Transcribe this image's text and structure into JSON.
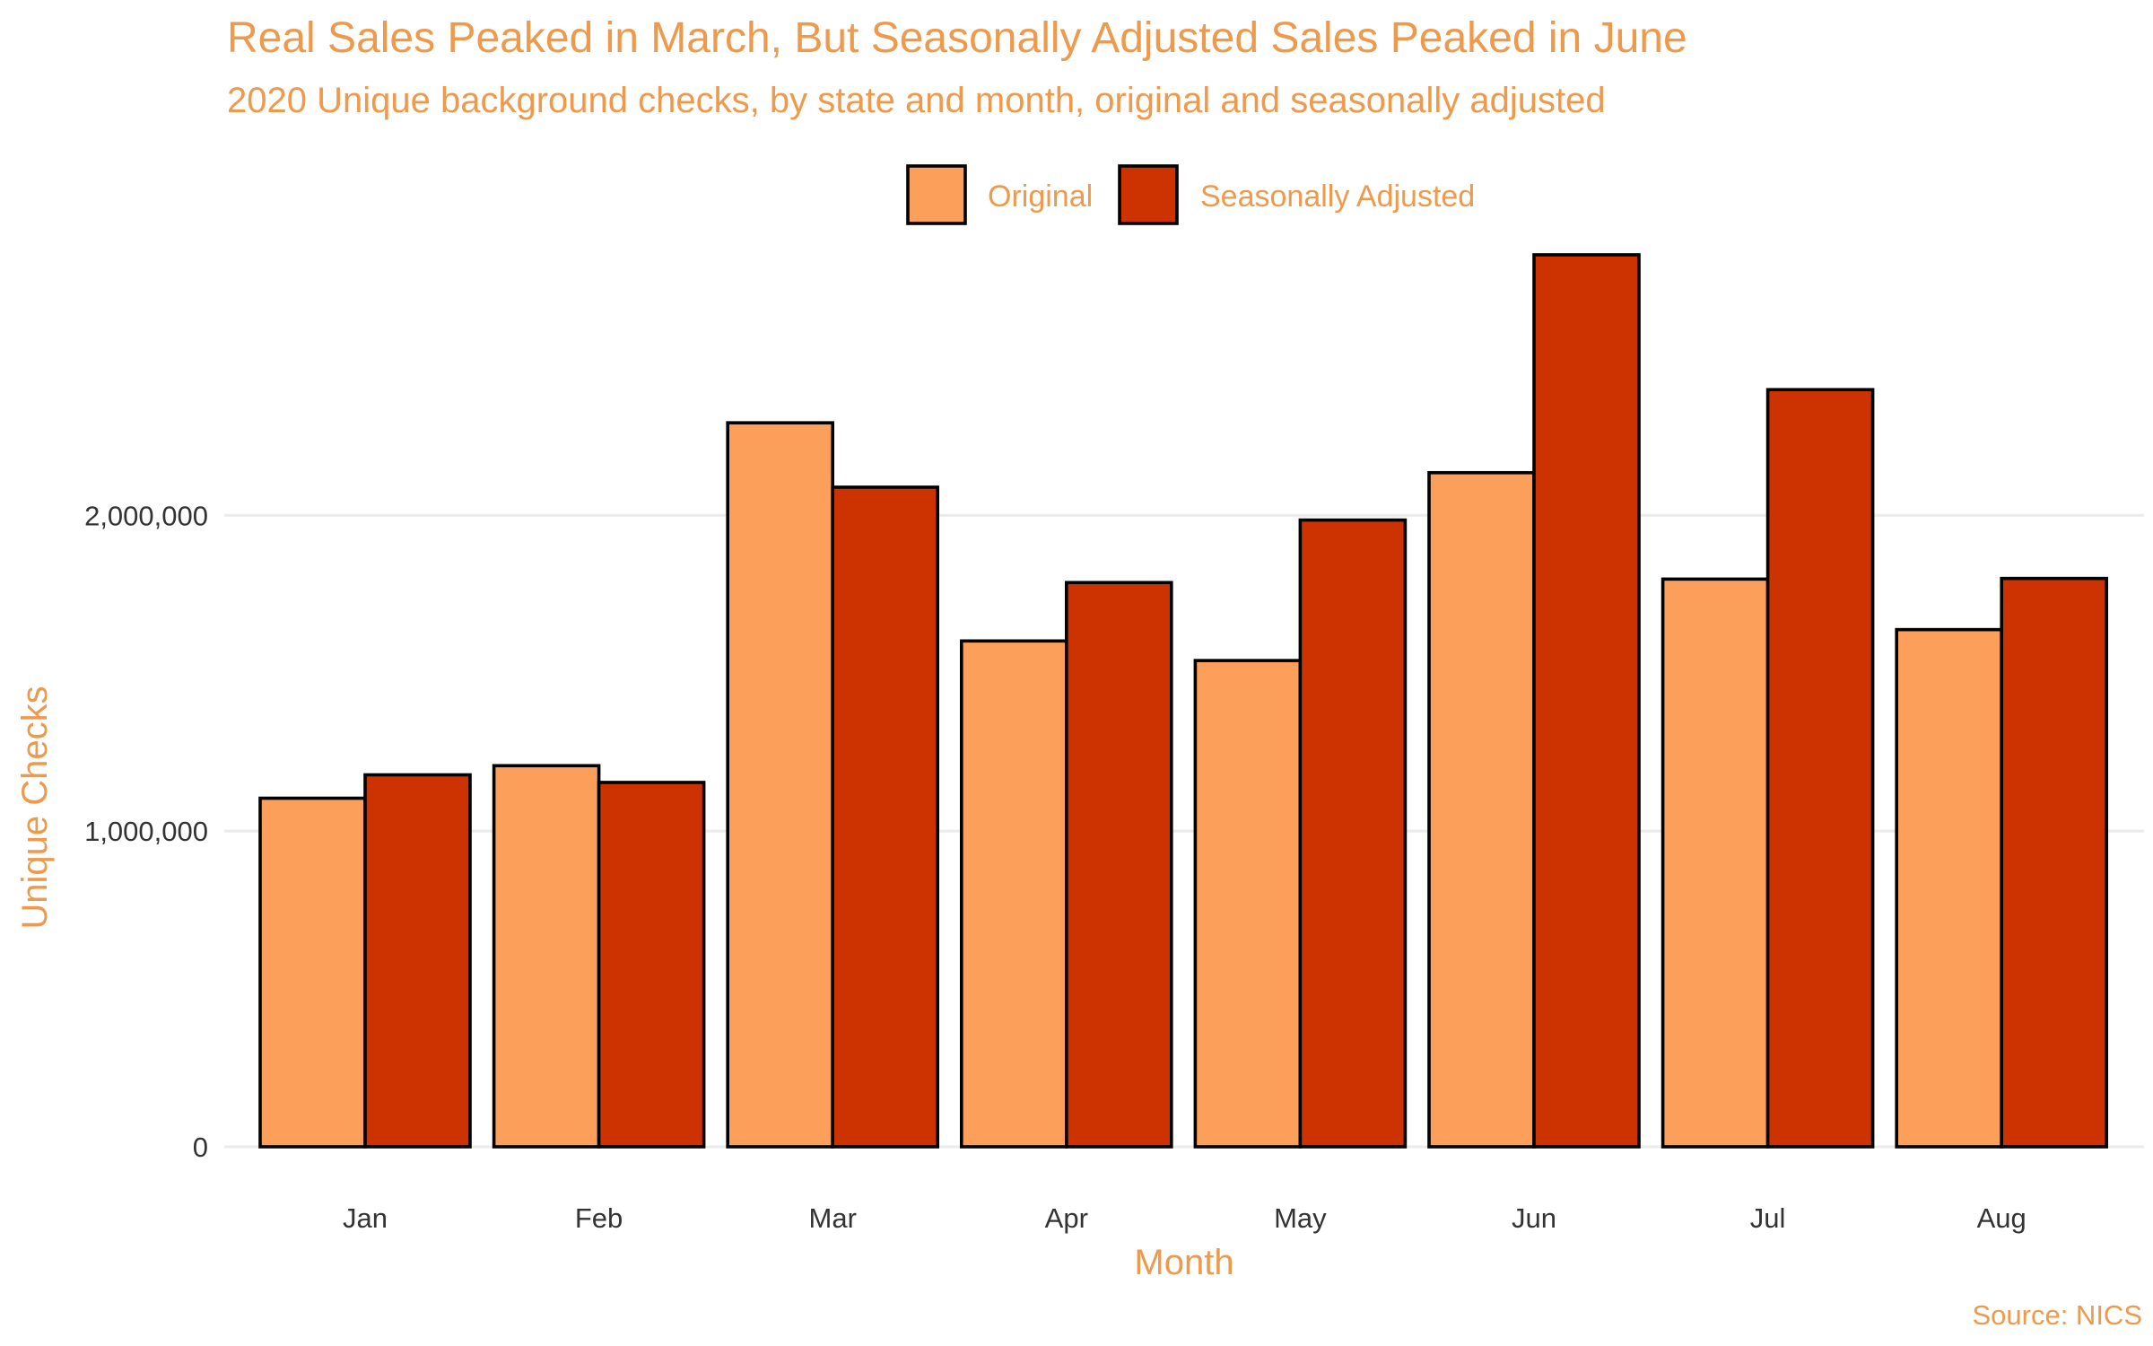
{
  "chart_data": {
    "type": "bar",
    "title": "Real Sales Peaked in March, But Seasonally Adjusted Sales Peaked in June",
    "subtitle": "2020 Unique background checks, by state and month, original and seasonally adjusted",
    "xlabel": "Month",
    "ylabel": "Unique Checks",
    "caption": "Source: NICS",
    "categories": [
      "Jan",
      "Feb",
      "Mar",
      "Apr",
      "May",
      "Jun",
      "Jul",
      "Aug"
    ],
    "series": [
      {
        "name": "Original",
        "color": "#FC9F5B",
        "values": [
          1104000,
          1207000,
          2293000,
          1602000,
          1540000,
          2135000,
          1798000,
          1638000
        ]
      },
      {
        "name": "Seasonally Adjusted",
        "color": "#CC3300",
        "values": [
          1178000,
          1154000,
          2089000,
          1787000,
          1985000,
          2825000,
          2398000,
          1800000
        ]
      }
    ],
    "y_ticks": [
      {
        "value": 0,
        "label": "0"
      },
      {
        "value": 1000000,
        "label": "1,000,000"
      },
      {
        "value": 2000000,
        "label": "2,000,000"
      }
    ],
    "ylim": [
      0,
      2950000
    ],
    "grid": true,
    "legend_position": "top",
    "text_color": "#EE9A4D"
  }
}
